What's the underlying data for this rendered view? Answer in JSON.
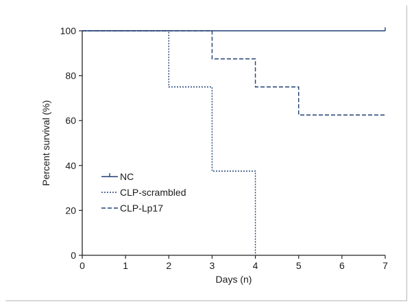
{
  "chart_data": {
    "type": "line",
    "subtype": "step",
    "title": "",
    "xlabel": "Days (n)",
    "ylabel": "Percent survival (%)",
    "xlim": [
      0,
      7
    ],
    "ylim": [
      0,
      100
    ],
    "x_ticks": [
      0,
      1,
      2,
      3,
      4,
      5,
      6,
      7
    ],
    "y_ticks": [
      0,
      20,
      40,
      60,
      80,
      100
    ],
    "grid": false,
    "legend_position": "left-middle",
    "series": [
      {
        "name": "NC",
        "style": "solid",
        "color": "#1f3f73",
        "points": [
          [
            0,
            100
          ],
          [
            7,
            100
          ]
        ]
      },
      {
        "name": "CLP-scrambled",
        "style": "dotted",
        "color": "#1f3f73",
        "points": [
          [
            0,
            100
          ],
          [
            2,
            100
          ],
          [
            2,
            75
          ],
          [
            3,
            75
          ],
          [
            3,
            37.5
          ],
          [
            4,
            37.5
          ],
          [
            4,
            0
          ]
        ]
      },
      {
        "name": "CLP-Lp17",
        "style": "dashed",
        "color": "#1f3f73",
        "points": [
          [
            0,
            100
          ],
          [
            3,
            100
          ],
          [
            3,
            87.5
          ],
          [
            4,
            87.5
          ],
          [
            4,
            75
          ],
          [
            5,
            75
          ],
          [
            5,
            62.5
          ],
          [
            7,
            62.5
          ]
        ]
      }
    ]
  }
}
